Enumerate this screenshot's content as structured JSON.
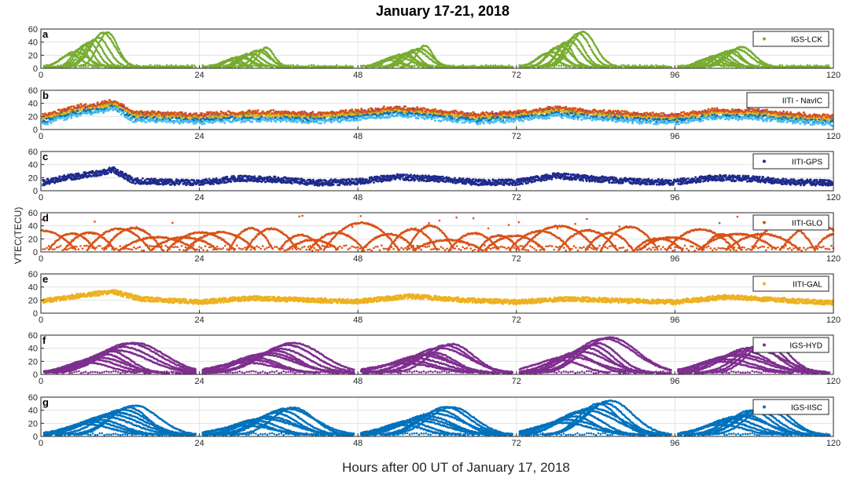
{
  "chart_data": {
    "type": "scatter",
    "title": "January 17-21, 2018",
    "xlabel": "Hours after 00 UT of January 17, 2018",
    "ylabel": "VTEC(TECU)",
    "xlim": [
      0,
      120
    ],
    "ylim": [
      0,
      60
    ],
    "xticks": [
      "0",
      "24",
      "48",
      "72",
      "96",
      "120"
    ],
    "yticks": [
      "0",
      "20",
      "40",
      "60"
    ],
    "grid": true,
    "legend_position": "top-right",
    "panels": [
      {
        "letter": "a",
        "legend": "IGS-LCK",
        "color": "#77ac30",
        "style": "bell",
        "peaks": [
          57,
          30,
          33,
          57,
          33
        ],
        "narrow": true
      },
      {
        "letter": "b",
        "legend": "IITI - NavIC",
        "color": "#7e2f8e",
        "style": "navic",
        "profile": [
          [
            0,
            15
          ],
          [
            3,
            22
          ],
          [
            6,
            30
          ],
          [
            9,
            33
          ],
          [
            11,
            38
          ],
          [
            14,
            20
          ],
          [
            18,
            19
          ],
          [
            24,
            17
          ],
          [
            30,
            20
          ],
          [
            35,
            21
          ],
          [
            42,
            18
          ],
          [
            48,
            22
          ],
          [
            54,
            28
          ],
          [
            60,
            22
          ],
          [
            66,
            17
          ],
          [
            72,
            20
          ],
          [
            78,
            27
          ],
          [
            84,
            22
          ],
          [
            90,
            18
          ],
          [
            96,
            16
          ],
          [
            102,
            24
          ],
          [
            108,
            23
          ],
          [
            114,
            18
          ],
          [
            120,
            14
          ]
        ]
      },
      {
        "letter": "c",
        "legend": "IITI-GPS",
        "color": "#1f2a8c",
        "style": "band",
        "profile": [
          [
            0,
            12
          ],
          [
            4,
            20
          ],
          [
            8,
            26
          ],
          [
            11,
            32
          ],
          [
            14,
            15
          ],
          [
            24,
            12
          ],
          [
            30,
            19
          ],
          [
            36,
            17
          ],
          [
            42,
            12
          ],
          [
            48,
            14
          ],
          [
            54,
            21
          ],
          [
            60,
            18
          ],
          [
            66,
            13
          ],
          [
            72,
            13
          ],
          [
            78,
            23
          ],
          [
            84,
            18
          ],
          [
            90,
            14
          ],
          [
            96,
            13
          ],
          [
            102,
            20
          ],
          [
            108,
            18
          ],
          [
            114,
            13
          ],
          [
            120,
            12
          ]
        ]
      },
      {
        "letter": "d",
        "legend": "IITI-GLO",
        "color": "#d95319",
        "style": "arcs",
        "amps": [
          40,
          35,
          42,
          46,
          44,
          40
        ]
      },
      {
        "letter": "e",
        "legend": "IITI-GAL",
        "color": "#edb120",
        "style": "galband",
        "profile": [
          [
            0,
            18
          ],
          [
            6,
            27
          ],
          [
            11,
            33
          ],
          [
            15,
            22
          ],
          [
            24,
            17
          ],
          [
            32,
            23
          ],
          [
            40,
            20
          ],
          [
            48,
            18
          ],
          [
            56,
            26
          ],
          [
            64,
            20
          ],
          [
            72,
            17
          ],
          [
            80,
            22
          ],
          [
            88,
            19
          ],
          [
            96,
            17
          ],
          [
            104,
            25
          ],
          [
            112,
            20
          ],
          [
            120,
            16
          ]
        ]
      },
      {
        "letter": "f",
        "legend": "IGS-HYD",
        "color": "#7e2f8e",
        "style": "bell",
        "peaks": [
          50,
          48,
          46,
          58,
          52
        ],
        "narrow": false
      },
      {
        "letter": "g",
        "legend": "IGS-IISC",
        "color": "#0072bd",
        "style": "bell",
        "peaks": [
          50,
          46,
          47,
          58,
          50
        ],
        "narrow": false
      }
    ]
  }
}
